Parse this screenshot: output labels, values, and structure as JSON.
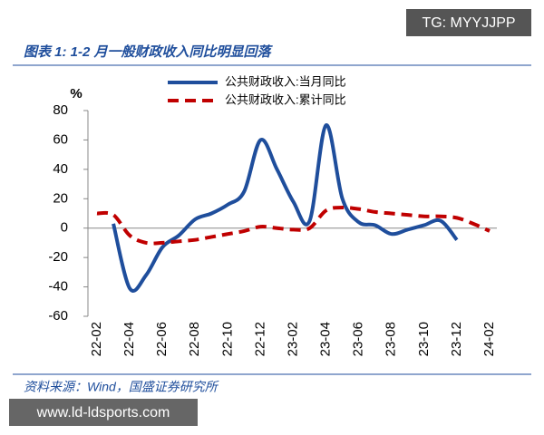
{
  "chart_data": {
    "type": "line",
    "title": "图表 1:  1-2 月一般财政收入同比明显回落",
    "source": "资料来源：Wind，国盛证券研究所",
    "y_label": "%",
    "categories": [
      "22-02",
      null,
      "22-04",
      null,
      "22-06",
      null,
      "22-08",
      null,
      "22-10",
      null,
      "22-12",
      null,
      "23-02",
      null,
      "23-04",
      null,
      "23-06",
      null,
      "23-08",
      null,
      "23-10",
      null,
      "23-12",
      null,
      "24-02"
    ],
    "series": [
      {
        "name": "公共财政收入:当月同比",
        "color": "#1f4e9c",
        "dash": false,
        "values": [
          null,
          3,
          -41,
          -32,
          -13,
          -5,
          6,
          10,
          16,
          25,
          60,
          40,
          18,
          5,
          70,
          20,
          4,
          2,
          -4,
          -1,
          2,
          5,
          -8,
          null,
          null
        ]
      },
      {
        "name": "公共财政收入:累计同比",
        "color": "#c00000",
        "dash": true,
        "values": [
          10,
          9,
          -5,
          -10,
          -10,
          -9,
          -8,
          -6,
          -4,
          -2,
          1,
          0,
          -1,
          0,
          12,
          14,
          13,
          11,
          10,
          9,
          8,
          8,
          7,
          3,
          -2
        ]
      }
    ],
    "ylim": [
      -60,
      80
    ],
    "yticks": [
      -60,
      -40,
      -20,
      0,
      20,
      40,
      60,
      80
    ],
    "grid": false,
    "legend": "top"
  },
  "watermarks": [
    "TG: MYYJJPP",
    "www.ld-ldsports.com"
  ]
}
